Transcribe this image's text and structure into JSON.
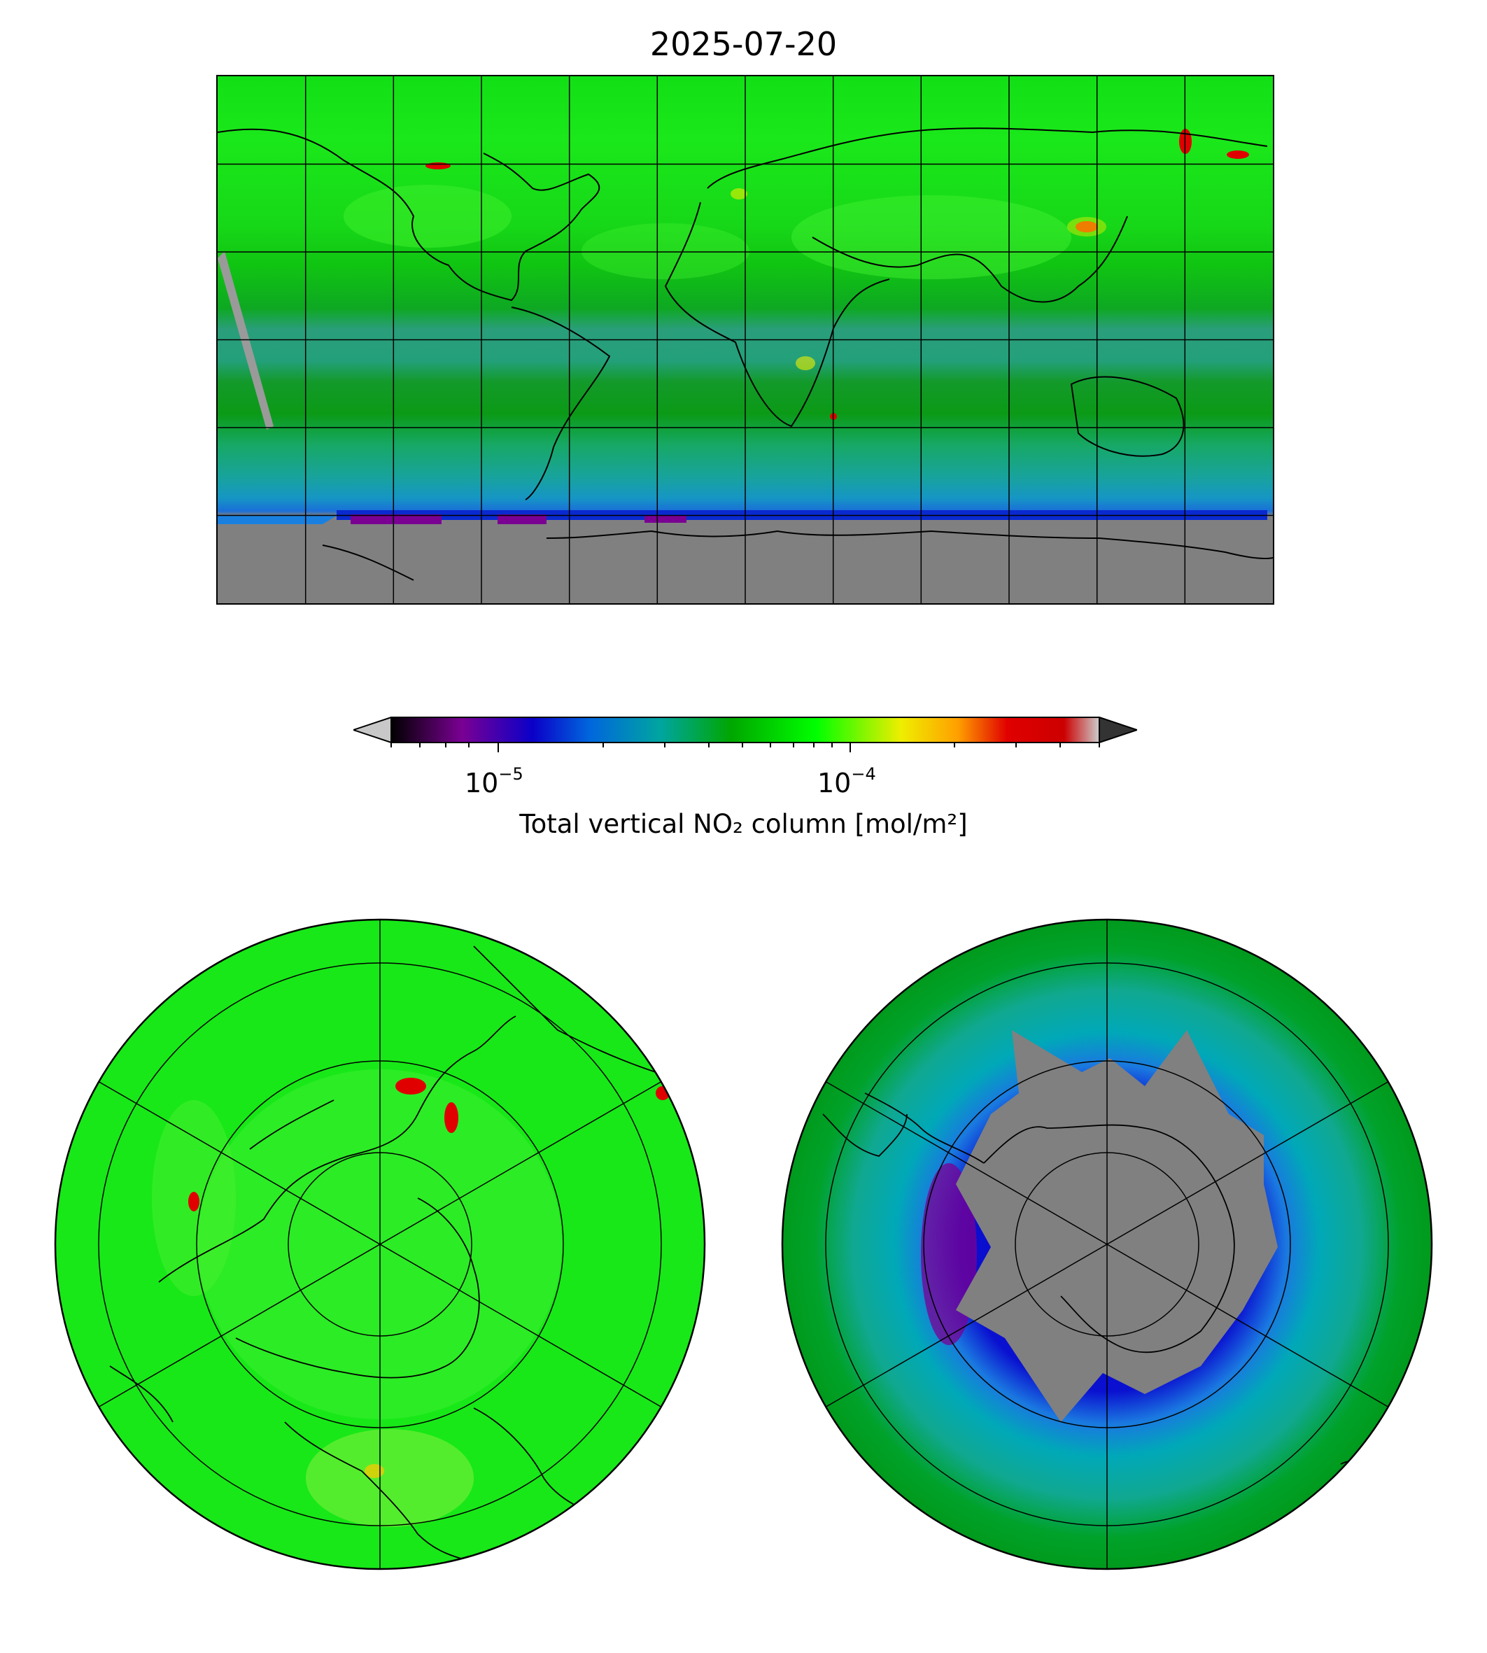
{
  "title": "2025-07-20",
  "colorbar": {
    "label": "Total vertical NO₂ column [mol/m²]",
    "scale": "log",
    "ticks": [
      {
        "base": "10",
        "exp": "−5",
        "value": 1e-05
      },
      {
        "base": "10",
        "exp": "−4",
        "value": 0.0001
      }
    ],
    "range": [
      5e-06,
      0.0005
    ],
    "extend": "both",
    "under_color": "#c8c8c8",
    "over_color": "#333333",
    "colormap_stops": [
      "#000000",
      "#7a0093",
      "#0a00c8",
      "#0066dd",
      "#00a5a0",
      "#00a600",
      "#00ff00",
      "#eeee00",
      "#ffa000",
      "#e00000",
      "#cc0000",
      "#cccccc"
    ]
  },
  "panels": {
    "global": {
      "projection": "PlateCarree",
      "gridlines": true,
      "missing_color": "#808080"
    },
    "north": {
      "projection": "NorthPolarStereo",
      "gridlines": true
    },
    "south": {
      "projection": "SouthPolarStereo",
      "gridlines": true,
      "missing_color": "#808080"
    }
  },
  "colors": {
    "land_outline": "#000000",
    "high_green": "#00ff00",
    "mid_green": "#00a600",
    "teal": "#00a5a0",
    "low_blue": "#0a00c8",
    "very_low_purple": "#7a0093",
    "hotspot_red": "#e00000",
    "hotspot_yellow": "#eeee00"
  }
}
